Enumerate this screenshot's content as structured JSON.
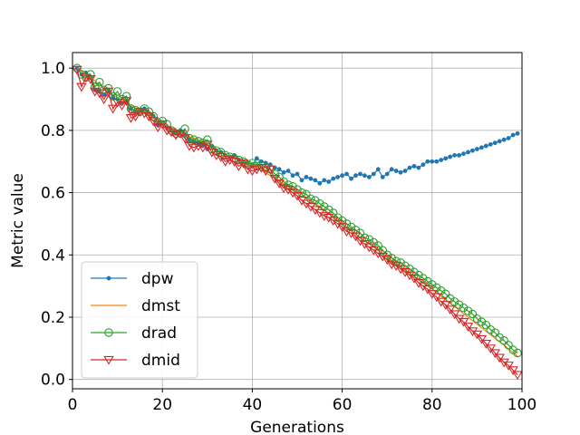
{
  "chart_data": {
    "type": "line",
    "title": "",
    "xlabel": "Generations",
    "ylabel": "Metric value",
    "xlim": [
      0,
      100
    ],
    "ylim": [
      -0.03,
      1.05
    ],
    "xticks": [
      "0",
      "20",
      "40",
      "60",
      "80",
      "100"
    ],
    "yticks": [
      "0.0",
      "0.2",
      "0.4",
      "0.6",
      "0.8",
      "1.0"
    ],
    "grid": true,
    "legend_position": "lower-left",
    "series": [
      {
        "name": "dpw",
        "color": "#1f77b4",
        "marker": "dot",
        "x": [
          1,
          2,
          3,
          4,
          5,
          6,
          7,
          8,
          9,
          10,
          11,
          12,
          13,
          14,
          15,
          16,
          17,
          18,
          19,
          20,
          21,
          22,
          23,
          24,
          25,
          26,
          27,
          28,
          29,
          30,
          31,
          32,
          33,
          34,
          35,
          36,
          37,
          38,
          39,
          40,
          41,
          42,
          43,
          44,
          45,
          46,
          47,
          48,
          49,
          50,
          51,
          52,
          53,
          54,
          55,
          56,
          57,
          58,
          59,
          60,
          61,
          62,
          63,
          64,
          65,
          66,
          67,
          68,
          69,
          70,
          71,
          72,
          73,
          74,
          75,
          76,
          77,
          78,
          79,
          80,
          81,
          82,
          83,
          84,
          85,
          86,
          87,
          88,
          89,
          90,
          91,
          92,
          93,
          94,
          95,
          96,
          97,
          98,
          99
        ],
        "values": [
          1.0,
          0.98,
          0.985,
          0.97,
          0.93,
          0.925,
          0.915,
          0.93,
          0.905,
          0.9,
          0.89,
          0.895,
          0.87,
          0.86,
          0.865,
          0.87,
          0.855,
          0.845,
          0.82,
          0.825,
          0.81,
          0.8,
          0.79,
          0.8,
          0.785,
          0.77,
          0.765,
          0.76,
          0.755,
          0.74,
          0.75,
          0.735,
          0.73,
          0.72,
          0.715,
          0.72,
          0.705,
          0.7,
          0.695,
          0.69,
          0.71,
          0.7,
          0.695,
          0.69,
          0.68,
          0.675,
          0.665,
          0.67,
          0.655,
          0.66,
          0.64,
          0.65,
          0.645,
          0.64,
          0.63,
          0.64,
          0.635,
          0.645,
          0.65,
          0.655,
          0.66,
          0.645,
          0.655,
          0.66,
          0.655,
          0.65,
          0.66,
          0.675,
          0.65,
          0.66,
          0.675,
          0.67,
          0.665,
          0.67,
          0.68,
          0.685,
          0.68,
          0.69,
          0.7,
          0.7,
          0.7,
          0.705,
          0.71,
          0.715,
          0.72,
          0.72,
          0.725,
          0.73,
          0.735,
          0.74,
          0.745,
          0.75,
          0.755,
          0.76,
          0.765,
          0.77,
          0.775,
          0.785,
          0.79
        ]
      },
      {
        "name": "dmst",
        "color": "#ff7f0e",
        "marker": "none",
        "x": [
          1,
          4,
          8,
          12,
          16,
          20,
          24,
          28,
          32,
          36,
          40,
          44,
          48,
          52,
          56,
          60,
          64,
          68,
          72,
          76,
          80,
          84,
          88,
          92,
          96,
          99
        ],
        "values": [
          1.0,
          0.97,
          0.925,
          0.885,
          0.86,
          0.825,
          0.79,
          0.77,
          0.735,
          0.71,
          0.69,
          0.655,
          0.62,
          0.585,
          0.545,
          0.5,
          0.455,
          0.415,
          0.37,
          0.33,
          0.29,
          0.245,
          0.2,
          0.155,
          0.11,
          0.075
        ]
      },
      {
        "name": "drad",
        "color": "#2ca02c",
        "marker": "circle",
        "x": [
          1,
          2,
          3,
          4,
          5,
          6,
          7,
          8,
          9,
          10,
          11,
          12,
          13,
          14,
          15,
          16,
          17,
          18,
          19,
          20,
          21,
          22,
          23,
          24,
          25,
          26,
          27,
          28,
          29,
          30,
          31,
          32,
          33,
          34,
          35,
          36,
          37,
          38,
          39,
          40,
          41,
          42,
          43,
          44,
          45,
          46,
          47,
          48,
          49,
          50,
          51,
          52,
          53,
          54,
          55,
          56,
          57,
          58,
          59,
          60,
          61,
          62,
          63,
          64,
          65,
          66,
          67,
          68,
          69,
          70,
          71,
          72,
          73,
          74,
          75,
          76,
          77,
          78,
          79,
          80,
          81,
          82,
          83,
          84,
          85,
          86,
          87,
          88,
          89,
          90,
          91,
          92,
          93,
          94,
          95,
          96,
          97,
          98,
          99
        ],
        "values": [
          1.0,
          0.98,
          0.97,
          0.98,
          0.94,
          0.955,
          0.93,
          0.935,
          0.91,
          0.925,
          0.9,
          0.91,
          0.87,
          0.865,
          0.86,
          0.87,
          0.86,
          0.845,
          0.825,
          0.83,
          0.82,
          0.8,
          0.79,
          0.79,
          0.805,
          0.775,
          0.77,
          0.765,
          0.76,
          0.77,
          0.74,
          0.735,
          0.73,
          0.72,
          0.715,
          0.71,
          0.705,
          0.7,
          0.69,
          0.695,
          0.685,
          0.69,
          0.68,
          0.675,
          0.66,
          0.65,
          0.635,
          0.625,
          0.62,
          0.61,
          0.6,
          0.595,
          0.58,
          0.575,
          0.565,
          0.555,
          0.545,
          0.535,
          0.52,
          0.51,
          0.5,
          0.49,
          0.48,
          0.47,
          0.455,
          0.45,
          0.44,
          0.43,
          0.415,
          0.4,
          0.39,
          0.38,
          0.375,
          0.365,
          0.355,
          0.345,
          0.335,
          0.325,
          0.315,
          0.305,
          0.295,
          0.285,
          0.275,
          0.26,
          0.25,
          0.24,
          0.23,
          0.22,
          0.21,
          0.195,
          0.185,
          0.175,
          0.16,
          0.15,
          0.135,
          0.125,
          0.11,
          0.095,
          0.085
        ]
      },
      {
        "name": "dmid",
        "color": "#d62728",
        "marker": "triangle_down",
        "x": [
          1,
          2,
          3,
          4,
          5,
          6,
          7,
          8,
          9,
          10,
          11,
          12,
          13,
          14,
          15,
          16,
          17,
          18,
          19,
          20,
          21,
          22,
          23,
          24,
          25,
          26,
          27,
          28,
          29,
          30,
          31,
          32,
          33,
          34,
          35,
          36,
          37,
          38,
          39,
          40,
          41,
          42,
          43,
          44,
          45,
          46,
          47,
          48,
          49,
          50,
          51,
          52,
          53,
          54,
          55,
          56,
          57,
          58,
          59,
          60,
          61,
          62,
          63,
          64,
          65,
          66,
          67,
          68,
          69,
          70,
          71,
          72,
          73,
          74,
          75,
          76,
          77,
          78,
          79,
          80,
          81,
          82,
          83,
          84,
          85,
          86,
          87,
          88,
          89,
          90,
          91,
          92,
          93,
          94,
          95,
          96,
          97,
          98,
          99
        ],
        "values": [
          0.995,
          0.94,
          0.97,
          0.965,
          0.925,
          0.92,
          0.9,
          0.925,
          0.87,
          0.89,
          0.88,
          0.895,
          0.84,
          0.845,
          0.86,
          0.855,
          0.845,
          0.83,
          0.81,
          0.82,
          0.8,
          0.795,
          0.785,
          0.79,
          0.775,
          0.75,
          0.745,
          0.75,
          0.745,
          0.755,
          0.73,
          0.72,
          0.715,
          0.7,
          0.705,
          0.7,
          0.685,
          0.695,
          0.675,
          0.67,
          0.675,
          0.68,
          0.67,
          0.675,
          0.645,
          0.63,
          0.615,
          0.61,
          0.6,
          0.59,
          0.575,
          0.565,
          0.555,
          0.545,
          0.535,
          0.525,
          0.52,
          0.51,
          0.5,
          0.49,
          0.475,
          0.47,
          0.46,
          0.445,
          0.435,
          0.425,
          0.415,
          0.405,
          0.395,
          0.385,
          0.37,
          0.365,
          0.355,
          0.345,
          0.335,
          0.325,
          0.31,
          0.3,
          0.29,
          0.275,
          0.265,
          0.25,
          0.24,
          0.225,
          0.21,
          0.195,
          0.185,
          0.17,
          0.155,
          0.145,
          0.13,
          0.115,
          0.1,
          0.085,
          0.07,
          0.055,
          0.045,
          0.03,
          0.015
        ]
      }
    ]
  }
}
